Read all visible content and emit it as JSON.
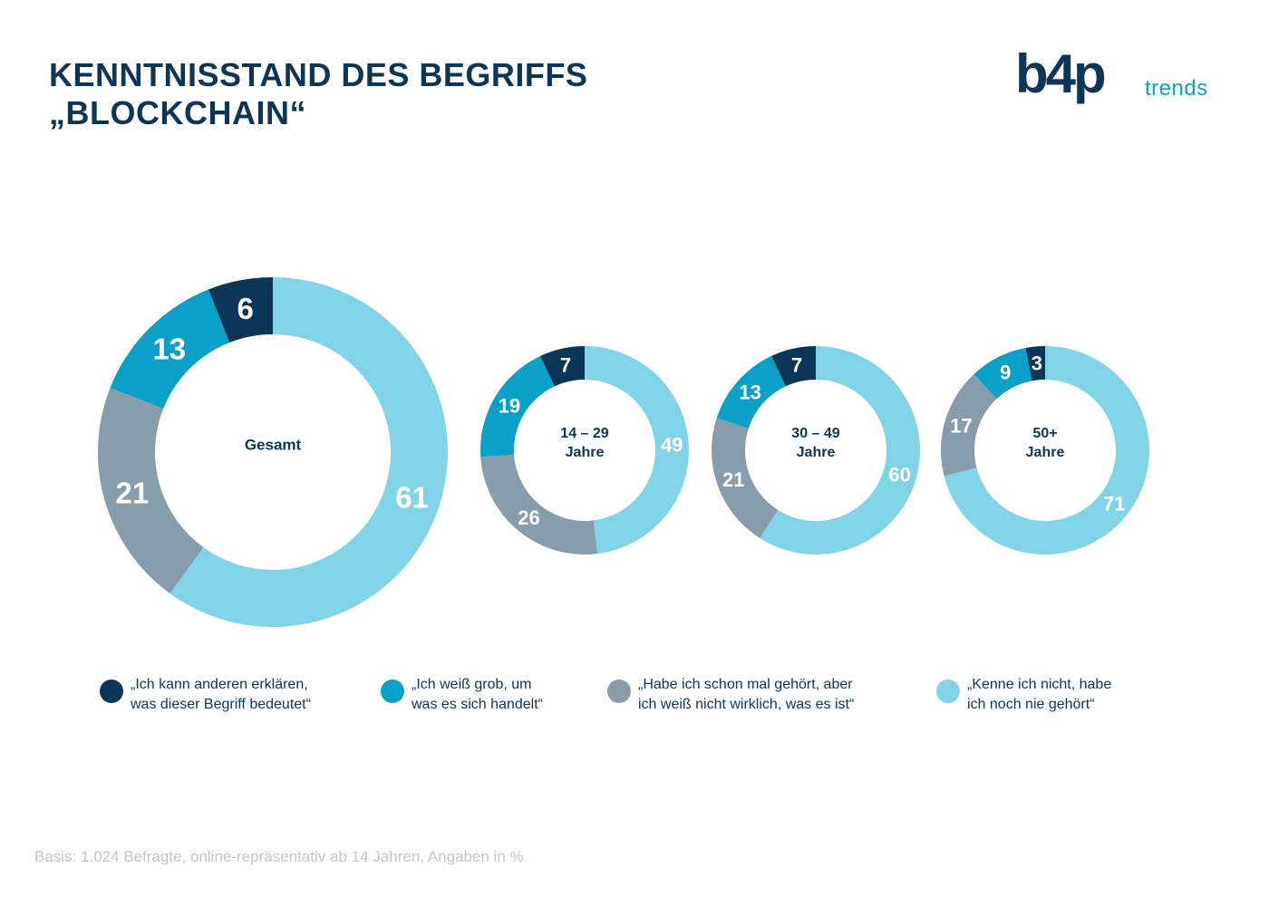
{
  "header": {
    "title_line1": "KENNTNISSTAND DES BEGRIFFS",
    "title_line2": "„BLOCKCHAIN“"
  },
  "logo": {
    "text": "b4p",
    "subtitle": "trends",
    "colors": {
      "primary": "#0c3657",
      "accent": "#0aa0c8"
    }
  },
  "colors": {
    "explain": "#0c3657",
    "rough": "#0aa0c8",
    "heard": "#879dab",
    "unknown": "#81d4e7",
    "center_text": "#0c3657",
    "footer": "#c2c6cb"
  },
  "legend": [
    {
      "color_key": "explain",
      "line1": "„Ich kann anderen erklären,",
      "line2": "was dieser Begriff bedeutet“"
    },
    {
      "color_key": "rough",
      "line1": "„Ich weiß grob, um",
      "line2": "was es sich handelt“"
    },
    {
      "color_key": "heard",
      "line1": "„Habe ich schon mal gehört, aber",
      "line2": "ich weiß nicht wirklich, was es ist“"
    },
    {
      "color_key": "unknown",
      "line1": "„Kenne ich nicht, habe",
      "line2": "ich noch nie gehört“"
    }
  ],
  "chart_data": {
    "type": "donut",
    "unit": "%",
    "categories": [
      "„Ich kann anderen erklären, was dieser Begriff bedeutet“",
      "„Ich weiß grob, um was es sich handelt“",
      "„Habe ich schon mal gehört, aber ich weiß nicht wirklich, was es ist“",
      "„Kenne ich nicht, habe ich noch nie gehört“"
    ],
    "charts": [
      {
        "label": "Gesamt",
        "values": [
          6,
          13,
          21,
          61
        ]
      },
      {
        "label": "14 – 29 Jahre",
        "values": [
          7,
          19,
          26,
          49
        ]
      },
      {
        "label": "30 – 49 Jahre",
        "values": [
          7,
          13,
          21,
          60
        ]
      },
      {
        "label": "50+ Jahre",
        "values": [
          3,
          9,
          17,
          71
        ]
      }
    ]
  },
  "footer": {
    "note": "Basis: 1.024 Befragte, online-repräsentativ ab 14 Jahren, Angaben in %"
  }
}
